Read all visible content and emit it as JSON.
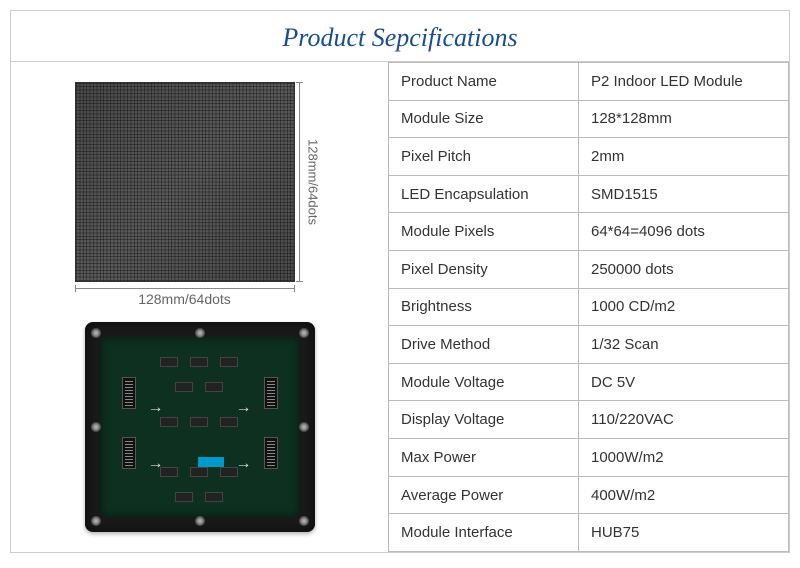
{
  "title": "Product Sepcifications",
  "dimensions": {
    "vertical_label": "128mm/64dots",
    "horizontal_label": "128mm/64dots"
  },
  "specs": [
    {
      "label": "Product Name",
      "value": "P2 Indoor LED Module"
    },
    {
      "label": "Module Size",
      "value": "128*128mm"
    },
    {
      "label": "Pixel Pitch",
      "value": "2mm"
    },
    {
      "label": "LED Encapsulation",
      "value": "SMD1515"
    },
    {
      "label": "Module Pixels",
      "value": "64*64=4096 dots"
    },
    {
      "label": "Pixel Density",
      "value": "250000 dots"
    },
    {
      "label": "Brightness",
      "value": "1000 CD/m2"
    },
    {
      "label": "Drive Method",
      "value": "1/32 Scan"
    },
    {
      "label": "Module Voltage",
      "value": "DC 5V"
    },
    {
      "label": "Display Voltage",
      "value": "110/220VAC"
    },
    {
      "label": "Max Power",
      "value": "1000W/m2"
    },
    {
      "label": "Average Power",
      "value": "400W/m2"
    },
    {
      "label": "Module Interface",
      "value": "HUB75"
    }
  ],
  "colors": {
    "title": "#1a4d8f",
    "border": "#cccccc",
    "text": "#333333",
    "dim_text": "#666666",
    "pcb": "#0d3020",
    "frame": "#1a1a1a"
  }
}
